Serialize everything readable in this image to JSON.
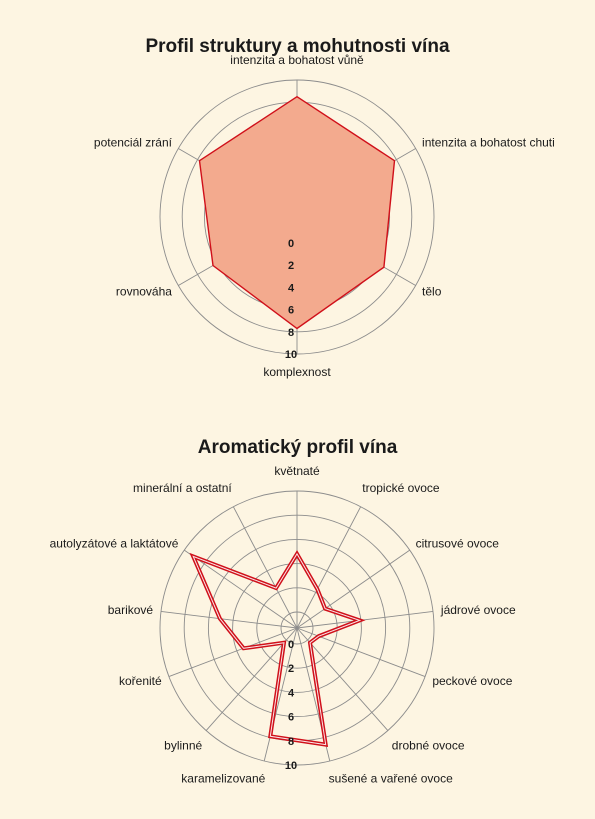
{
  "colors": {
    "background": "#fdf5e2",
    "grid": "#8c8c8c",
    "series_line": "#d0101a",
    "series_fill": "#f3aa8e"
  },
  "chart_data": [
    {
      "type": "radar",
      "title": "Profil struktury a mohutnosti vína",
      "axes": [
        "intenzita a bohatost vůně",
        "intenzita a bohatost chuti",
        "tělo",
        "komplexnost",
        "rovnováha",
        "potenciál zrání"
      ],
      "ticks": [
        "0",
        "2",
        "4",
        "6",
        "8",
        "10"
      ],
      "range": [
        0,
        10
      ],
      "grid": "circles",
      "series": [
        {
          "values": [
            8.5,
            7.8,
            6.7,
            7.7,
            6.4,
            7.8
          ],
          "filled": true
        }
      ]
    },
    {
      "type": "radar",
      "title": "Aromatický profil vína",
      "axes": [
        "květnaté",
        "tropické ovoce",
        "citrusové ovoce",
        "jádrové ovoce",
        "peckové ovoce",
        "drobné ovoce",
        "sušené a vařené ovoce",
        "karamelizované",
        "bylinné",
        "kořenité",
        "barikové",
        "autolyzátové a laktátové",
        "minerální a ostatní"
      ],
      "ticks": [
        "0",
        "2",
        "4",
        "6",
        "8",
        "10"
      ],
      "range": [
        0,
        10
      ],
      "grid": "circles",
      "series": [
        {
          "values": [
            4.8,
            2.3,
            1.5,
            3.9,
            0.6,
            0.3,
            8.6,
            7.9,
            0.3,
            3.4,
            5.1,
            9.1,
            2.4
          ],
          "filled": false
        }
      ]
    }
  ]
}
